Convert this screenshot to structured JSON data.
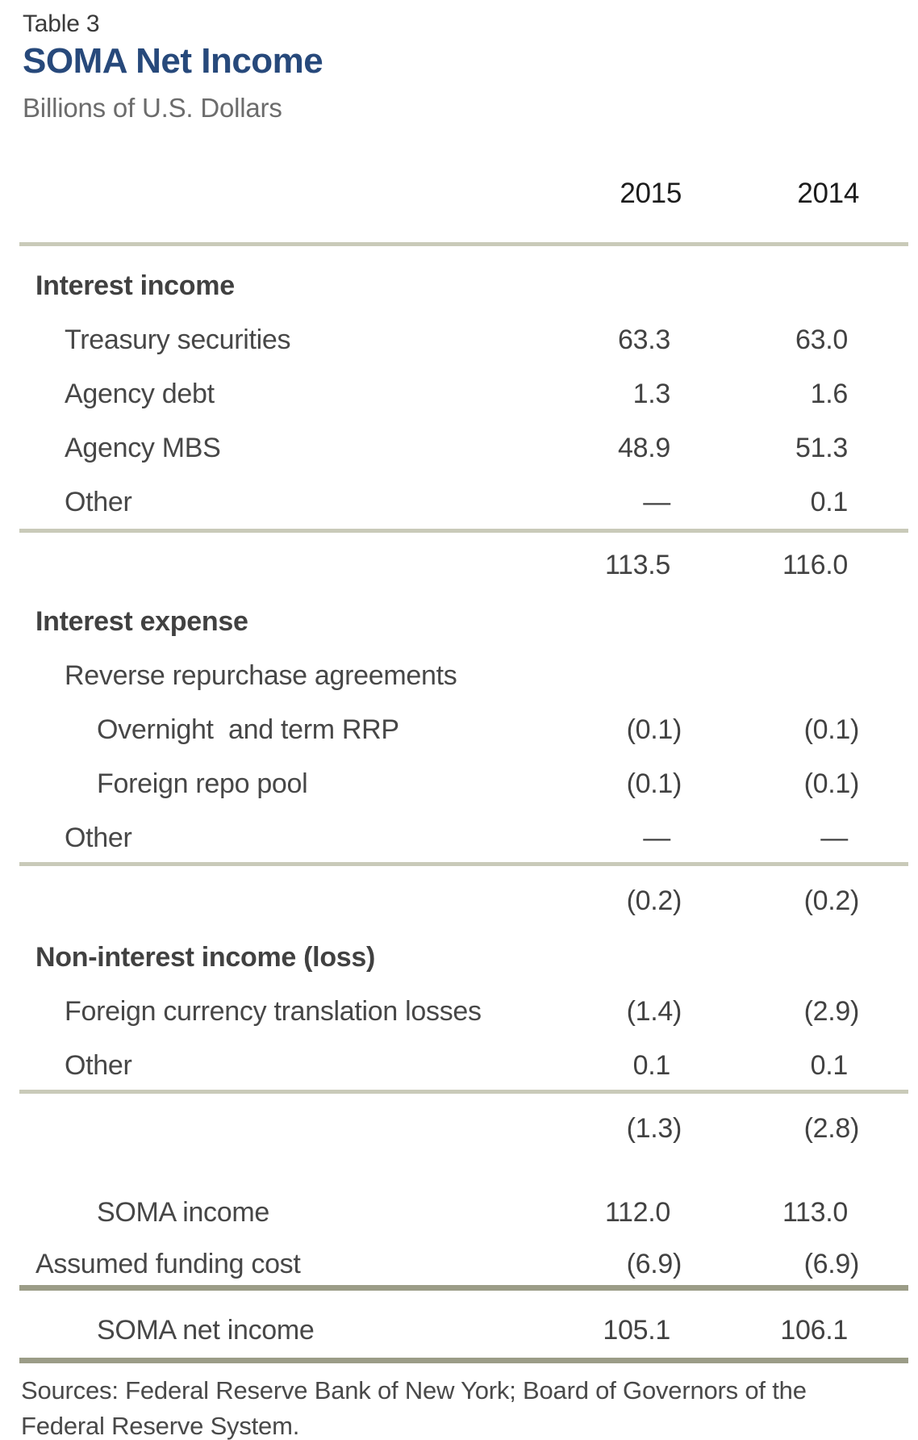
{
  "header": {
    "table_label": "Table 3",
    "title": "SOMA Net Income",
    "subtitle": "Billions of U.S. Dollars"
  },
  "table": {
    "columns": [
      "2015",
      "2014"
    ],
    "rows": [
      {
        "type": "section",
        "indent": 0,
        "label": "Interest income",
        "v1": "",
        "v2": ""
      },
      {
        "type": "item",
        "indent": 1,
        "label": "Treasury securities",
        "v1": "63.3",
        "v2": "63.0"
      },
      {
        "type": "item",
        "indent": 1,
        "label": "Agency debt",
        "v1": "1.3",
        "v2": "1.6"
      },
      {
        "type": "item",
        "indent": 1,
        "label": "Agency MBS",
        "v1": "48.9",
        "v2": "51.3"
      },
      {
        "type": "item",
        "indent": 1,
        "label": "Other",
        "v1": "—",
        "v2": "0.1"
      },
      {
        "type": "rule",
        "style": "light"
      },
      {
        "type": "total",
        "indent": 1,
        "label": "",
        "v1": "113.5",
        "v2": "116.0"
      },
      {
        "type": "section",
        "indent": 0,
        "label": "Interest expense",
        "v1": "",
        "v2": ""
      },
      {
        "type": "item",
        "indent": 1,
        "label": "Reverse repurchase agreements",
        "v1": "",
        "v2": ""
      },
      {
        "type": "item",
        "indent": 2,
        "label": "Overnight  and term RRP",
        "v1": "(0.1)",
        "v2": "(0.1)"
      },
      {
        "type": "item",
        "indent": 2,
        "label": "Foreign repo pool",
        "v1": "(0.1)",
        "v2": "(0.1)"
      },
      {
        "type": "item",
        "indent": 1,
        "label": "Other",
        "v1": "—",
        "v2": "—"
      },
      {
        "type": "rule",
        "style": "light"
      },
      {
        "type": "total",
        "indent": 1,
        "label": "",
        "v1": "(0.2)",
        "v2": "(0.2)"
      },
      {
        "type": "section",
        "indent": 0,
        "label": "Non-interest income (loss)",
        "v1": "",
        "v2": ""
      },
      {
        "type": "item",
        "indent": 1,
        "label": "Foreign currency translation losses",
        "v1": "(1.4)",
        "v2": "(2.9)"
      },
      {
        "type": "item",
        "indent": 1,
        "label": "Other",
        "v1": "0.1",
        "v2": "0.1"
      },
      {
        "type": "rule",
        "style": "light"
      },
      {
        "type": "total",
        "indent": 1,
        "label": "",
        "v1": "(1.3)",
        "v2": "(2.8)"
      },
      {
        "type": "item",
        "indent": 2,
        "label": "SOMA income",
        "v1": "112.0",
        "v2": "113.0"
      },
      {
        "type": "item",
        "indent": 0,
        "label": "Assumed funding cost",
        "v1": "(6.9)",
        "v2": "(6.9)"
      },
      {
        "type": "rule",
        "style": "dark"
      },
      {
        "type": "item",
        "indent": 2,
        "label": "SOMA net income",
        "v1": "105.1",
        "v2": "106.1"
      },
      {
        "type": "rule",
        "style": "dark"
      }
    ]
  },
  "source_note": "Sources: Federal Reserve Bank of New York; Board of Governors of the Federal Reserve System.",
  "colors": {
    "title_navy": "#27497b",
    "rule_light": "#c9cab9",
    "rule_dark": "#9b9c87",
    "body_text": "#474747"
  }
}
